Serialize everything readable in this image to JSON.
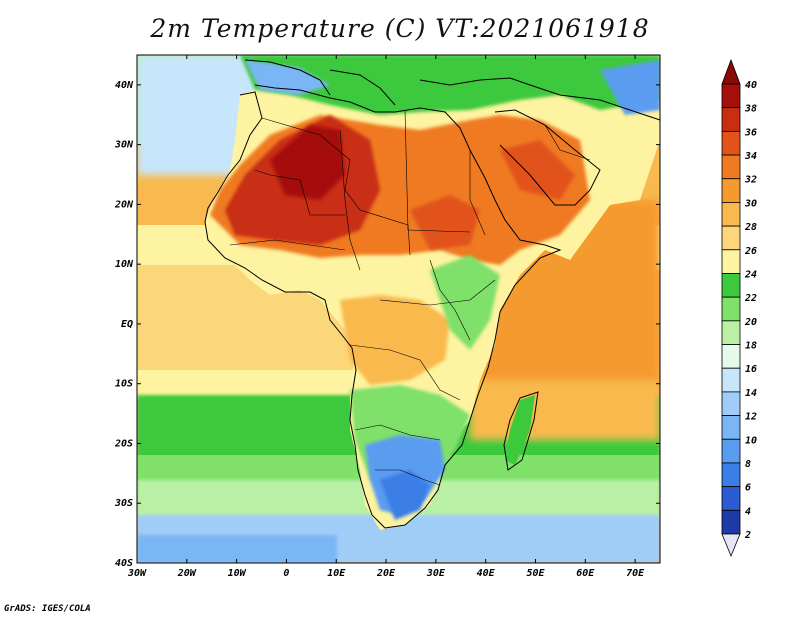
{
  "title": "2m Temperature (C) VT:2021061918",
  "credit": "GrADS: IGES/COLA",
  "map": {
    "lon_range": [
      -30,
      75
    ],
    "lat_range": [
      -40,
      45
    ],
    "x_ticks": [
      {
        "value": -30,
        "label": "30W"
      },
      {
        "value": -20,
        "label": "20W"
      },
      {
        "value": -10,
        "label": "10W"
      },
      {
        "value": 0,
        "label": "0"
      },
      {
        "value": 10,
        "label": "10E"
      },
      {
        "value": 20,
        "label": "20E"
      },
      {
        "value": 30,
        "label": "30E"
      },
      {
        "value": 40,
        "label": "40E"
      },
      {
        "value": 50,
        "label": "50E"
      },
      {
        "value": 60,
        "label": "60E"
      },
      {
        "value": 70,
        "label": "70E"
      }
    ],
    "y_ticks": [
      {
        "value": 40,
        "label": "40N"
      },
      {
        "value": 30,
        "label": "30N"
      },
      {
        "value": 20,
        "label": "20N"
      },
      {
        "value": 10,
        "label": "10N"
      },
      {
        "value": 0,
        "label": "EQ"
      },
      {
        "value": -10,
        "label": "10S"
      },
      {
        "value": -20,
        "label": "20S"
      },
      {
        "value": -30,
        "label": "30S"
      },
      {
        "value": -40,
        "label": "40S"
      }
    ]
  },
  "colorbar": {
    "levels": [
      {
        "label": "2",
        "color": "#0b1a73"
      },
      {
        "label": "4",
        "color": "#1e3aa8"
      },
      {
        "label": "6",
        "color": "#2a5bd0"
      },
      {
        "label": "8",
        "color": "#3a7ee6"
      },
      {
        "label": "10",
        "color": "#5a9cf0"
      },
      {
        "label": "12",
        "color": "#7ab6f5"
      },
      {
        "label": "14",
        "color": "#a0cdf8"
      },
      {
        "label": "16",
        "color": "#c8e6fb"
      },
      {
        "label": "18",
        "color": "#e4fbe9"
      },
      {
        "label": "20",
        "color": "#b9f0a6"
      },
      {
        "label": "22",
        "color": "#7fe06a"
      },
      {
        "label": "24",
        "color": "#3cc93c"
      },
      {
        "label": "26",
        "color": "#fdf3a0"
      },
      {
        "label": "28",
        "color": "#fbd77a"
      },
      {
        "label": "30",
        "color": "#f9b94e"
      },
      {
        "label": "32",
        "color": "#f59a2e"
      },
      {
        "label": "34",
        "color": "#ef7a22"
      },
      {
        "label": "36",
        "color": "#e2531a"
      },
      {
        "label": "38",
        "color": "#c92e12"
      },
      {
        "label": "40",
        "color": "#a50f0a"
      }
    ],
    "under_color": "#eae4fb",
    "over_color": "#8a0a06"
  }
}
